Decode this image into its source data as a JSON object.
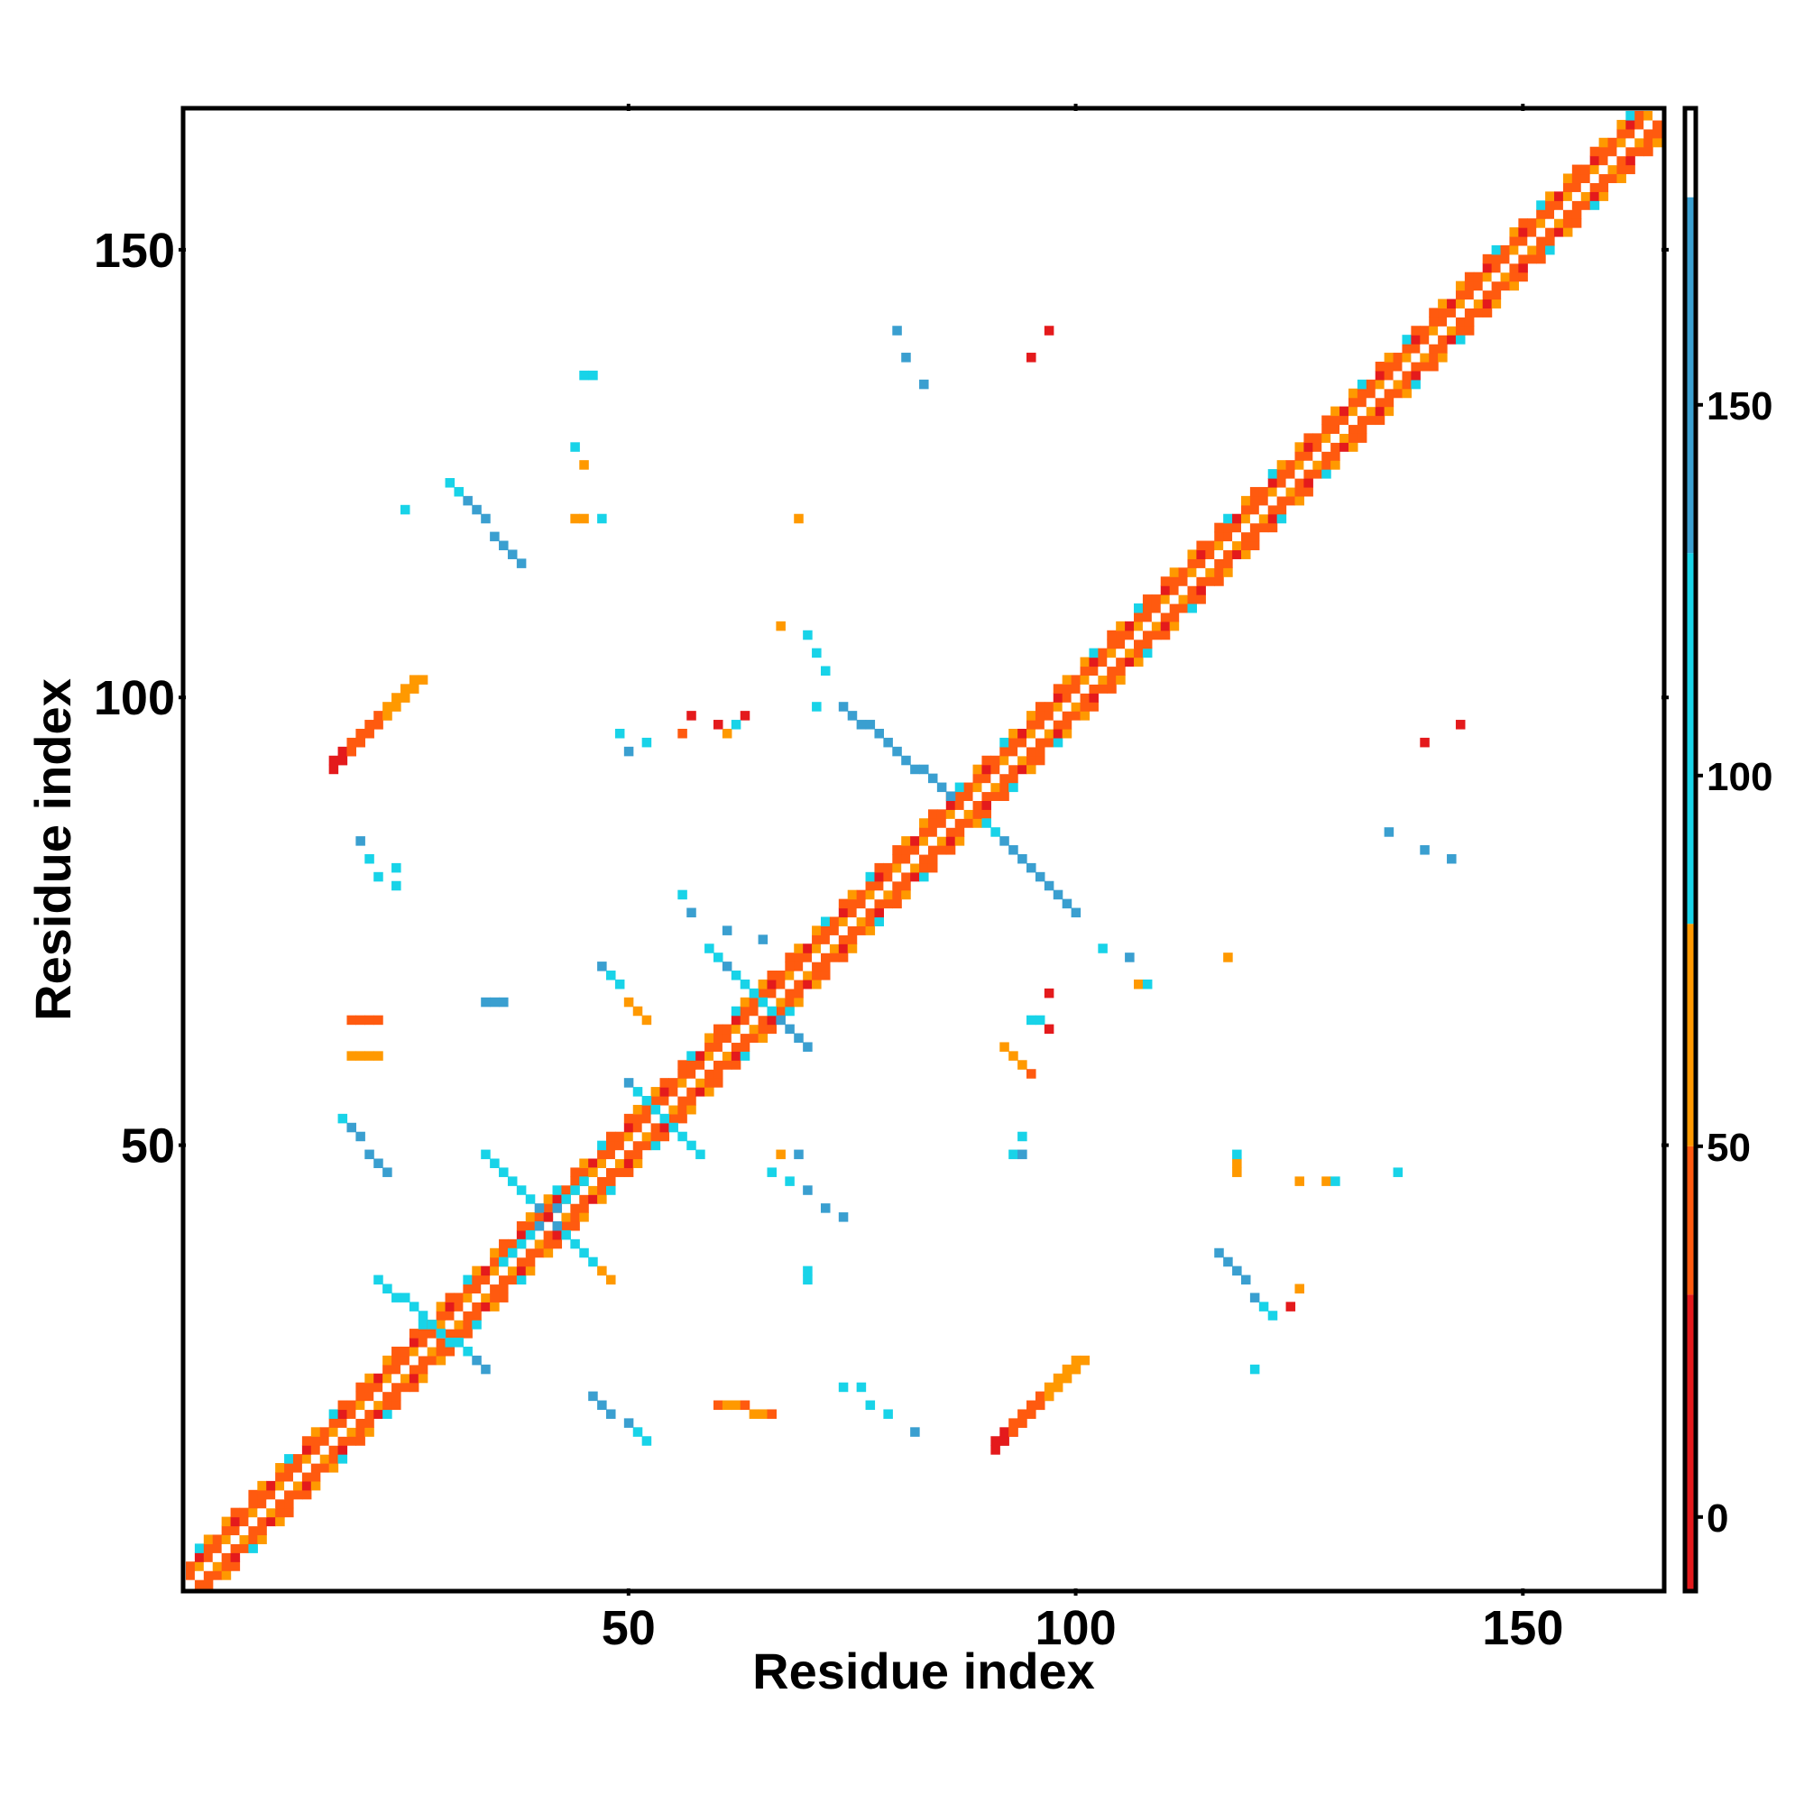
{
  "chart_data": {
    "type": "heatmap",
    "title": "",
    "xlabel": "Residue index",
    "ylabel": "Residue index",
    "xlim": [
      1,
      165
    ],
    "ylim": [
      1,
      165
    ],
    "x_ticks": [
      50,
      100,
      150
    ],
    "y_ticks": [
      50,
      100,
      150
    ],
    "x_tick_labels": [
      "50",
      "100",
      "150"
    ],
    "y_tick_labels": [
      "50",
      "100",
      "150"
    ],
    "grid": false,
    "legend": "colorbar-right",
    "colorbar": {
      "range": [
        -10,
        190
      ],
      "ticks": [
        0,
        50,
        100,
        150
      ],
      "tick_labels": [
        "0",
        "50",
        "100",
        "150"
      ],
      "bands": [
        {
          "from": -10,
          "to": 30,
          "color": "#E41A1C"
        },
        {
          "from": 30,
          "to": 50,
          "color": "#FF5A0F"
        },
        {
          "from": 50,
          "to": 80,
          "color": "#FF9900"
        },
        {
          "from": 80,
          "to": 130,
          "color": "#18D3E8"
        },
        {
          "from": 130,
          "to": 178,
          "color": "#3A9FD0"
        },
        {
          "from": 178,
          "to": 190,
          "color": "#FFFFFF"
        }
      ]
    },
    "diagonal": {
      "from": 1,
      "to": 165
    },
    "segments": [
      {
        "from": [
          17,
          93
        ],
        "to": [
          26,
          102
        ],
        "values": [
          20,
          25,
          30,
          35,
          40,
          45,
          50,
          55,
          60,
          65
        ],
        "width": 2
      },
      {
        "from": [
          91,
          17
        ],
        "to": [
          100,
          26
        ],
        "values": [
          20,
          25,
          30,
          35,
          40,
          45,
          50,
          55,
          60,
          65
        ],
        "width": 2
      },
      {
        "from": [
          30,
          124
        ],
        "to": [
          38,
          115
        ],
        "values": [
          110,
          120,
          130,
          140,
          150,
          155,
          160,
          160,
          160
        ],
        "width": 1
      },
      {
        "from": [
          116,
          38
        ],
        "to": [
          122,
          31
        ],
        "values": [
          160,
          160,
          150,
          140,
          130,
          110,
          95
        ],
        "width": 1
      },
      {
        "from": [
          74,
          99
        ],
        "to": [
          86,
          89
        ],
        "values": [
          140,
          145,
          150,
          155,
          160,
          160,
          160,
          155,
          150,
          145,
          140,
          135,
          130
        ],
        "width": 1
      },
      {
        "from": [
          90,
          86
        ],
        "to": [
          100,
          76
        ],
        "values": [
          110,
          120,
          130,
          140,
          150,
          160,
          160,
          155,
          150,
          140,
          130
        ],
        "width": 1
      },
      {
        "from": [
          18,
          53
        ],
        "to": [
          23,
          47
        ],
        "values": [
          120,
          140,
          150,
          160,
          160,
          150
        ],
        "width": 1
      },
      {
        "from": [
          46,
          22
        ],
        "to": [
          52,
          17
        ],
        "values": [
          150,
          160,
          160,
          150,
          120,
          110
        ],
        "width": 1
      },
      {
        "from": [
          34,
          49
        ],
        "to": [
          48,
          35
        ],
        "values": [
          110,
          105,
          100,
          110,
          115,
          120,
          130,
          140,
          130,
          120,
          110,
          100,
          95,
          60,
          55
        ],
        "width": 1
      },
      {
        "from": [
          36,
          37
        ],
        "to": [
          46,
          47
        ],
        "values": [
          100,
          105,
          110,
          120,
          130,
          10,
          130,
          120,
          110,
          100,
          60
        ],
        "width": 1
      },
      {
        "from": [
          22,
          35
        ],
        "to": [
          34,
          25
        ],
        "values": [
          120,
          115,
          110,
          105,
          100,
          95,
          90,
          95,
          100,
          110,
          120,
          130,
          140
        ],
        "width": 1
      },
      {
        "from": [
          50,
          57
        ],
        "to": [
          58,
          49
        ],
        "values": [
          130,
          125,
          120,
          115,
          110,
          105,
          100,
          110,
          120
        ],
        "width": 1
      },
      {
        "from": [
          59,
          72
        ],
        "to": [
          70,
          61
        ],
        "values": [
          110,
          120,
          130,
          120,
          110,
          100,
          110,
          120,
          130,
          140,
          150,
          140
        ],
        "width": 1
      },
      {
        "from": [
          47,
          70
        ],
        "to": [
          52,
          64
        ],
        "values": [
          130,
          120,
          100,
          60,
          55,
          50
        ],
        "width": 1
      },
      {
        "from": [
          66,
          47
        ],
        "to": [
          74,
          42
        ],
        "values": [
          110,
          120,
          130,
          140,
          150
        ],
        "width": 1
      },
      {
        "from": [
          34,
          66
        ],
        "to": [
          36,
          66
        ],
        "values": [
          140,
          140,
          140
        ],
        "width": 1
      },
      {
        "from": [
          19,
          64
        ],
        "to": [
          22,
          64
        ],
        "values": [
          40,
          40,
          40,
          40
        ],
        "width": 1
      },
      {
        "from": [
          19,
          60
        ],
        "to": [
          22,
          60
        ],
        "values": [
          60,
          60,
          60,
          60
        ],
        "width": 1
      },
      {
        "from": [
          60,
          21
        ],
        "to": [
          66,
          20
        ],
        "values": [
          40,
          55,
          60,
          40,
          55,
          60,
          40
        ],
        "width": 1
      },
      {
        "from": [
          92,
          61
        ],
        "to": [
          95,
          58
        ],
        "values": [
          50,
          55,
          60,
          40
        ],
        "width": 1
      },
      {
        "from": [
          118,
          47
        ],
        "to": [
          118,
          49
        ],
        "values": [
          60,
          55,
          90
        ],
        "width": 1
      }
    ],
    "points": [
      {
        "x": 80,
        "y": 141,
        "value": 150
      },
      {
        "x": 81,
        "y": 138,
        "value": 150
      },
      {
        "x": 83,
        "y": 135,
        "value": 150
      },
      {
        "x": 97,
        "y": 141,
        "value": 10
      },
      {
        "x": 95,
        "y": 138,
        "value": 10
      },
      {
        "x": 45,
        "y": 136,
        "value": 110
      },
      {
        "x": 46,
        "y": 136,
        "value": 110
      },
      {
        "x": 44,
        "y": 128,
        "value": 95
      },
      {
        "x": 45,
        "y": 126,
        "value": 60
      },
      {
        "x": 44,
        "y": 120,
        "value": 55
      },
      {
        "x": 45,
        "y": 120,
        "value": 60
      },
      {
        "x": 47,
        "y": 120,
        "value": 100
      },
      {
        "x": 25,
        "y": 121,
        "value": 100
      },
      {
        "x": 69,
        "y": 120,
        "value": 60
      },
      {
        "x": 67,
        "y": 108,
        "value": 55
      },
      {
        "x": 70,
        "y": 107,
        "value": 100
      },
      {
        "x": 71,
        "y": 105,
        "value": 100
      },
      {
        "x": 72,
        "y": 103,
        "value": 100
      },
      {
        "x": 71,
        "y": 99,
        "value": 100
      },
      {
        "x": 57,
        "y": 98,
        "value": 10
      },
      {
        "x": 60,
        "y": 97,
        "value": 10
      },
      {
        "x": 63,
        "y": 98,
        "value": 10
      },
      {
        "x": 56,
        "y": 96,
        "value": 40
      },
      {
        "x": 61,
        "y": 96,
        "value": 55
      },
      {
        "x": 62,
        "y": 97,
        "value": 100
      },
      {
        "x": 49,
        "y": 96,
        "value": 100
      },
      {
        "x": 50,
        "y": 94,
        "value": 140
      },
      {
        "x": 52,
        "y": 95,
        "value": 100
      },
      {
        "x": 139,
        "y": 95,
        "value": 10
      },
      {
        "x": 143,
        "y": 97,
        "value": 10
      },
      {
        "x": 20,
        "y": 84,
        "value": 140
      },
      {
        "x": 21,
        "y": 82,
        "value": 100
      },
      {
        "x": 22,
        "y": 80,
        "value": 100
      },
      {
        "x": 24,
        "y": 81,
        "value": 100
      },
      {
        "x": 24,
        "y": 79,
        "value": 100
      },
      {
        "x": 135,
        "y": 85,
        "value": 150
      },
      {
        "x": 139,
        "y": 83,
        "value": 140
      },
      {
        "x": 142,
        "y": 82,
        "value": 140
      },
      {
        "x": 56,
        "y": 78,
        "value": 100
      },
      {
        "x": 57,
        "y": 76,
        "value": 140
      },
      {
        "x": 61,
        "y": 74,
        "value": 140
      },
      {
        "x": 65,
        "y": 73,
        "value": 140
      },
      {
        "x": 103,
        "y": 72,
        "value": 100
      },
      {
        "x": 106,
        "y": 71,
        "value": 140
      },
      {
        "x": 107,
        "y": 68,
        "value": 50
      },
      {
        "x": 117,
        "y": 71,
        "value": 60
      },
      {
        "x": 97,
        "y": 67,
        "value": 10
      },
      {
        "x": 95,
        "y": 64,
        "value": 100
      },
      {
        "x": 96,
        "y": 64,
        "value": 100
      },
      {
        "x": 97,
        "y": 63,
        "value": 10
      },
      {
        "x": 94,
        "y": 51,
        "value": 100
      },
      {
        "x": 93,
        "y": 49,
        "value": 100
      },
      {
        "x": 94,
        "y": 49,
        "value": 140
      },
      {
        "x": 67,
        "y": 49,
        "value": 60
      },
      {
        "x": 69,
        "y": 49,
        "value": 140
      },
      {
        "x": 125,
        "y": 46,
        "value": 60
      },
      {
        "x": 128,
        "y": 46,
        "value": 60
      },
      {
        "x": 129,
        "y": 46,
        "value": 100
      },
      {
        "x": 136,
        "y": 47,
        "value": 100
      },
      {
        "x": 125,
        "y": 34,
        "value": 60
      },
      {
        "x": 124,
        "y": 32,
        "value": 10
      },
      {
        "x": 120,
        "y": 25,
        "value": 100
      },
      {
        "x": 70,
        "y": 36,
        "value": 100
      },
      {
        "x": 70,
        "y": 35,
        "value": 100
      },
      {
        "x": 74,
        "y": 23,
        "value": 100
      },
      {
        "x": 76,
        "y": 23,
        "value": 100
      },
      {
        "x": 77,
        "y": 21,
        "value": 100
      },
      {
        "x": 79,
        "y": 20,
        "value": 100
      },
      {
        "x": 82,
        "y": 18,
        "value": 140
      },
      {
        "x": 108,
        "y": 68,
        "value": 100
      }
    ]
  }
}
